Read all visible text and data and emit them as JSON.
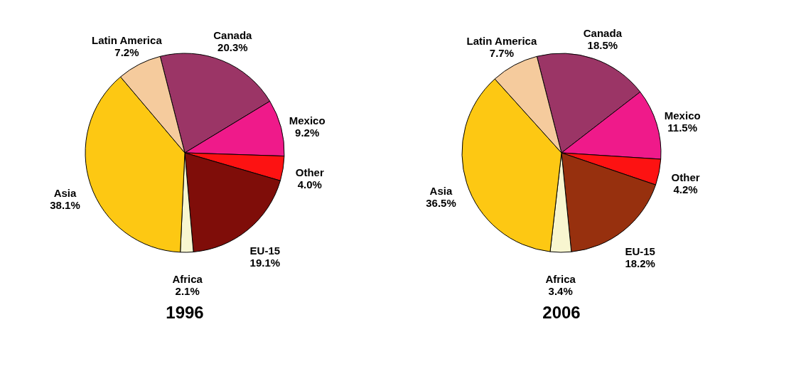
{
  "chart_data": [
    {
      "type": "pie",
      "title": "1996",
      "categories": [
        "Canada",
        "Mexico",
        "Other",
        "EU-15",
        "Africa",
        "Asia",
        "Latin America"
      ],
      "values": [
        20.3,
        9.2,
        4.0,
        19.1,
        2.1,
        38.1,
        7.2
      ],
      "value_labels": [
        "20.3%",
        "9.2%",
        "4.0%",
        "19.1%",
        "2.1%",
        "38.1%",
        "7.2%"
      ],
      "colors": [
        "#9b3566",
        "#ef1a8a",
        "#fd1212",
        "#7f0d09",
        "#f8f6d0",
        "#fdc813",
        "#f5cb9d"
      ],
      "legend": false
    },
    {
      "type": "pie",
      "title": "2006",
      "categories": [
        "Canada",
        "Mexico",
        "Other",
        "EU-15",
        "Africa",
        "Asia",
        "Latin America"
      ],
      "values": [
        18.5,
        11.5,
        4.2,
        18.2,
        3.4,
        36.5,
        7.7
      ],
      "value_labels": [
        "18.5%",
        "11.5%",
        "4.2%",
        "18.2%",
        "3.4%",
        "36.5%",
        "7.7%"
      ],
      "colors": [
        "#9b3566",
        "#ef1a8a",
        "#fd1212",
        "#97300e",
        "#f8f6d0",
        "#fdc813",
        "#f5cb9d"
      ],
      "legend": false
    }
  ]
}
